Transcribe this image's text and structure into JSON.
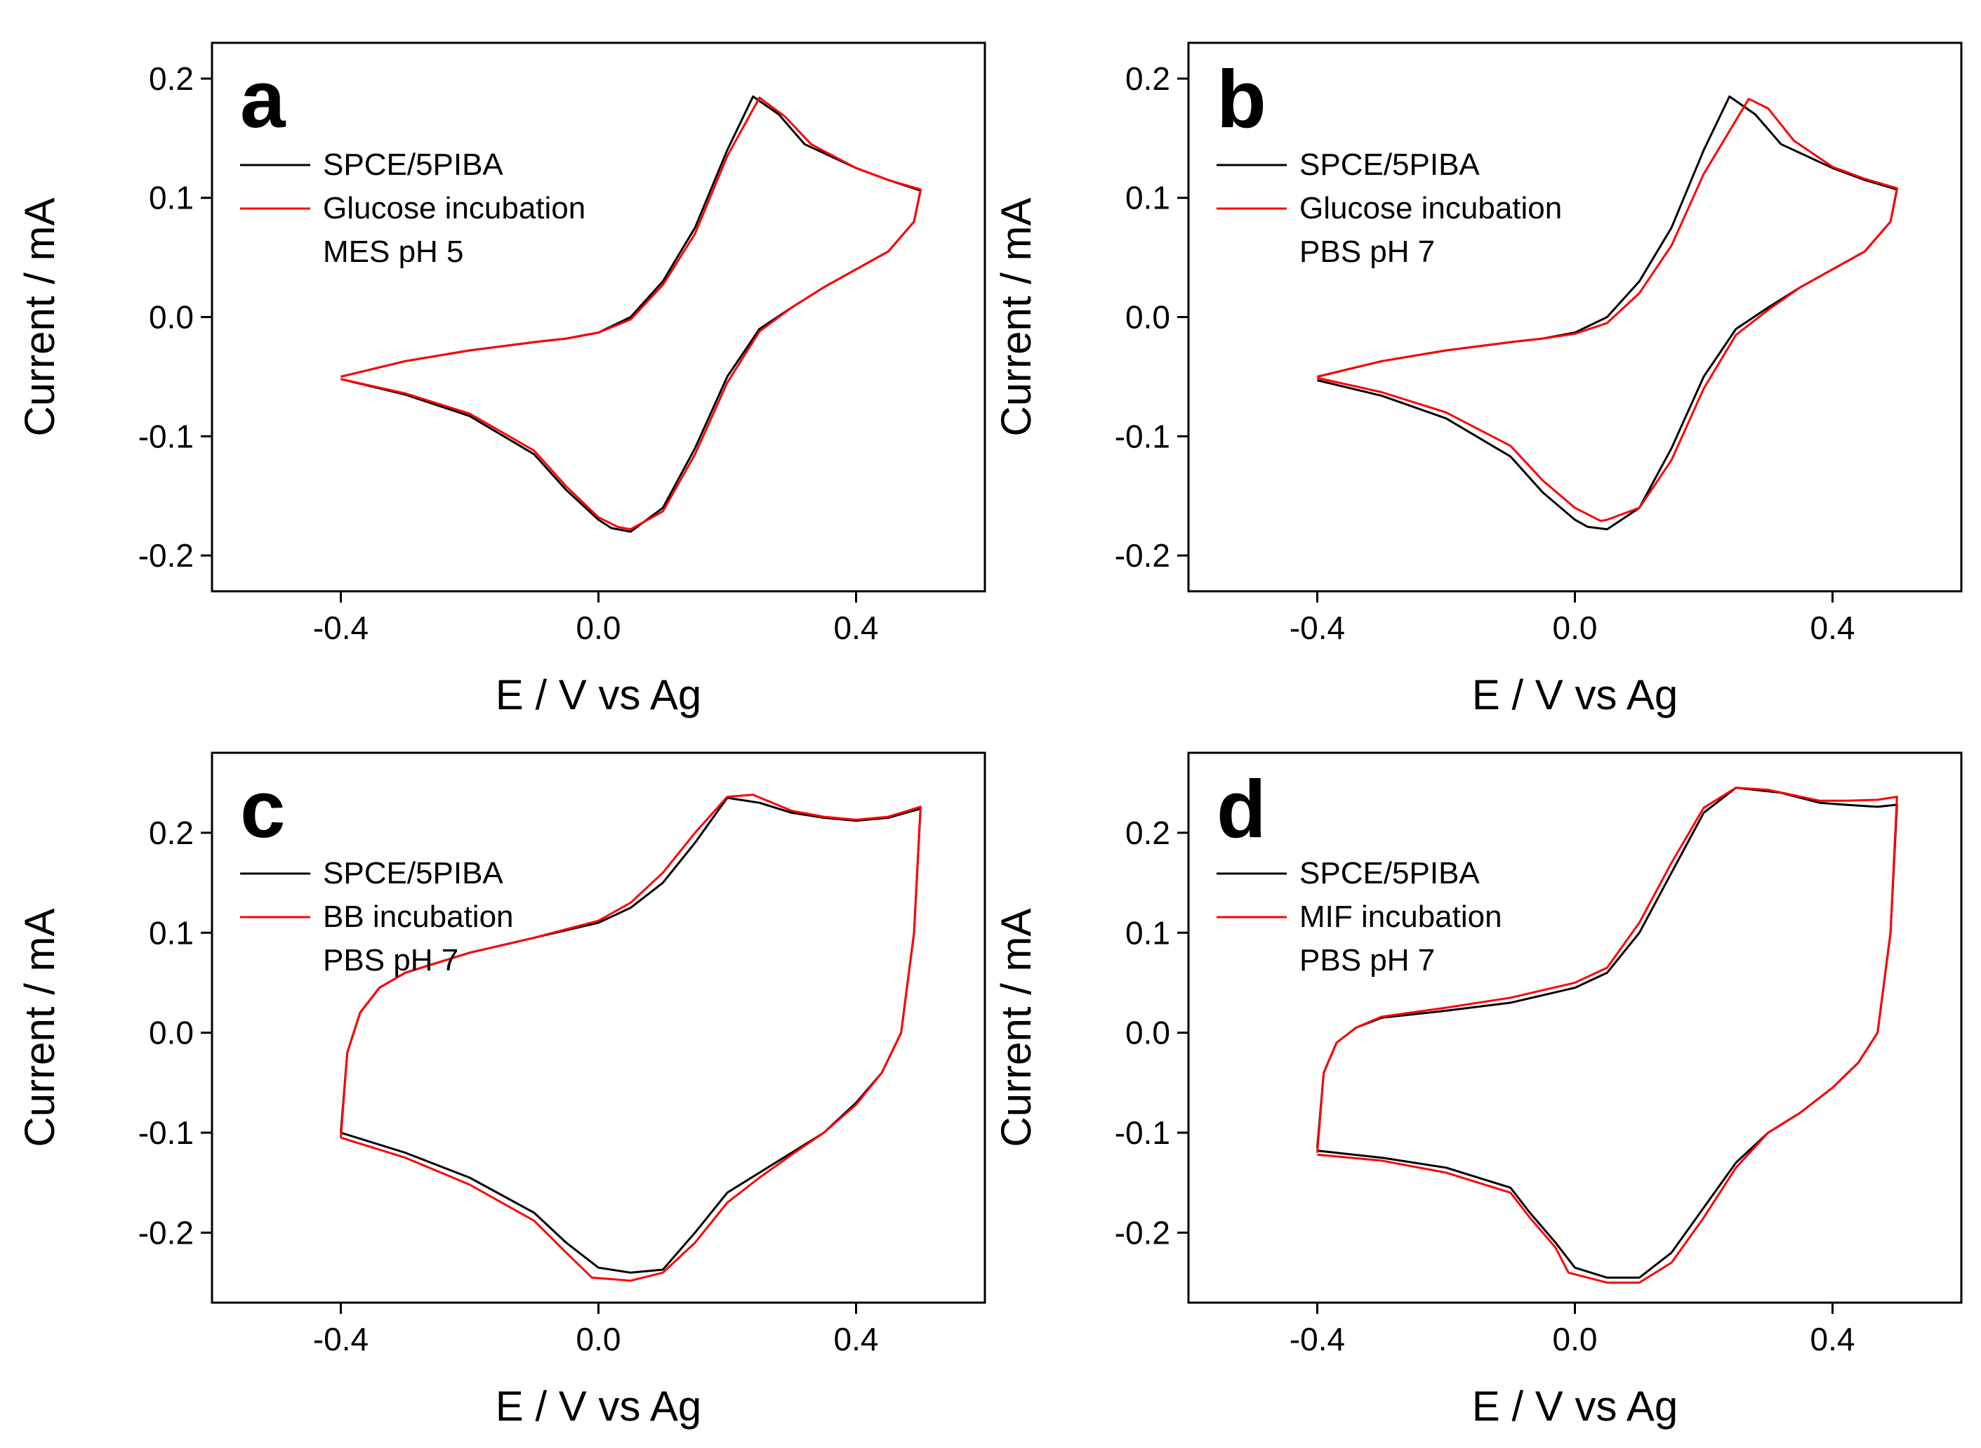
{
  "figure": {
    "description_panels": [
      "a",
      "b",
      "c",
      "d"
    ]
  },
  "chart_data": [
    {
      "panel": "a",
      "type": "line",
      "xlabel": "E / V vs Ag",
      "ylabel": "Current / mA",
      "xlim": [
        -0.6,
        0.6
      ],
      "ylim": [
        -0.23,
        0.23
      ],
      "xticks": [
        -0.4,
        0.0,
        0.4
      ],
      "xtick_labels": [
        "-0.4",
        "0.0",
        "0.4"
      ],
      "yticks": [
        -0.2,
        -0.1,
        0.0,
        0.1,
        0.2
      ],
      "ytick_labels": [
        "-0.2",
        "-0.1",
        "0.0",
        "0.1",
        "0.2"
      ],
      "legend": {
        "position": "upper-left",
        "note": "MES pH 5"
      },
      "series": [
        {
          "name": "SPCE/5PIBA",
          "color": "#000000",
          "x": [
            -0.4,
            -0.3,
            -0.2,
            -0.1,
            -0.05,
            0.0,
            0.05,
            0.1,
            0.15,
            0.2,
            0.24,
            0.28,
            0.32,
            0.4,
            0.45,
            0.5,
            0.49,
            0.45,
            0.4,
            0.35,
            0.3,
            0.25,
            0.2,
            0.15,
            0.1,
            0.05,
            0.02,
            0.0,
            -0.05,
            -0.1,
            -0.2,
            -0.3,
            -0.4
          ],
          "y": [
            -0.05,
            -0.037,
            -0.028,
            -0.021,
            -0.018,
            -0.013,
            0.0,
            0.03,
            0.075,
            0.14,
            0.185,
            0.17,
            0.145,
            0.125,
            0.115,
            0.106,
            0.08,
            0.055,
            0.04,
            0.025,
            0.008,
            -0.01,
            -0.05,
            -0.11,
            -0.16,
            -0.18,
            -0.177,
            -0.17,
            -0.145,
            -0.115,
            -0.083,
            -0.065,
            -0.052
          ]
        },
        {
          "name": "Glucose incubation",
          "color": "#ff0000",
          "x": [
            -0.4,
            -0.3,
            -0.2,
            -0.1,
            -0.05,
            0.0,
            0.05,
            0.1,
            0.15,
            0.2,
            0.25,
            0.29,
            0.33,
            0.4,
            0.45,
            0.5,
            0.49,
            0.45,
            0.4,
            0.35,
            0.3,
            0.25,
            0.2,
            0.15,
            0.1,
            0.05,
            0.03,
            0.0,
            -0.05,
            -0.1,
            -0.2,
            -0.3,
            -0.4
          ],
          "y": [
            -0.05,
            -0.037,
            -0.028,
            -0.021,
            -0.018,
            -0.013,
            -0.002,
            0.027,
            0.07,
            0.135,
            0.184,
            0.168,
            0.145,
            0.125,
            0.115,
            0.107,
            0.08,
            0.055,
            0.04,
            0.025,
            0.008,
            -0.012,
            -0.055,
            -0.115,
            -0.163,
            -0.178,
            -0.176,
            -0.168,
            -0.142,
            -0.112,
            -0.081,
            -0.064,
            -0.052
          ]
        }
      ]
    },
    {
      "panel": "b",
      "type": "line",
      "xlabel": "E / V vs Ag",
      "ylabel": "Current / mA",
      "xlim": [
        -0.6,
        0.6
      ],
      "ylim": [
        -0.23,
        0.23
      ],
      "xticks": [
        -0.4,
        0.0,
        0.4
      ],
      "xtick_labels": [
        "-0.4",
        "0.0",
        "0.4"
      ],
      "yticks": [
        -0.2,
        -0.1,
        0.0,
        0.1,
        0.2
      ],
      "ytick_labels": [
        "-0.2",
        "-0.1",
        "0.0",
        "0.1",
        "0.2"
      ],
      "legend": {
        "position": "upper-left",
        "note": "PBS pH 7"
      },
      "series": [
        {
          "name": "SPCE/5PIBA",
          "color": "#000000",
          "x": [
            -0.4,
            -0.3,
            -0.2,
            -0.1,
            -0.05,
            0.0,
            0.05,
            0.1,
            0.15,
            0.2,
            0.24,
            0.28,
            0.32,
            0.4,
            0.45,
            0.5,
            0.49,
            0.45,
            0.4,
            0.35,
            0.3,
            0.25,
            0.2,
            0.15,
            0.1,
            0.05,
            0.02,
            0.0,
            -0.05,
            -0.1,
            -0.2,
            -0.3,
            -0.4
          ],
          "y": [
            -0.05,
            -0.037,
            -0.028,
            -0.021,
            -0.018,
            -0.013,
            0.0,
            0.03,
            0.075,
            0.14,
            0.185,
            0.17,
            0.145,
            0.125,
            0.115,
            0.107,
            0.08,
            0.055,
            0.04,
            0.025,
            0.008,
            -0.01,
            -0.05,
            -0.11,
            -0.16,
            -0.178,
            -0.176,
            -0.17,
            -0.147,
            -0.117,
            -0.085,
            -0.066,
            -0.053
          ]
        },
        {
          "name": "Glucose incubation",
          "color": "#ff0000",
          "x": [
            -0.4,
            -0.3,
            -0.2,
            -0.1,
            -0.05,
            0.0,
            0.05,
            0.1,
            0.15,
            0.2,
            0.27,
            0.3,
            0.34,
            0.4,
            0.45,
            0.5,
            0.49,
            0.45,
            0.4,
            0.35,
            0.3,
            0.25,
            0.2,
            0.15,
            0.1,
            0.05,
            0.04,
            0.0,
            -0.05,
            -0.1,
            -0.2,
            -0.3,
            -0.4
          ],
          "y": [
            -0.05,
            -0.037,
            -0.028,
            -0.021,
            -0.018,
            -0.014,
            -0.005,
            0.02,
            0.06,
            0.12,
            0.183,
            0.175,
            0.148,
            0.126,
            0.116,
            0.108,
            0.08,
            0.055,
            0.04,
            0.025,
            0.006,
            -0.015,
            -0.06,
            -0.12,
            -0.16,
            -0.17,
            -0.171,
            -0.16,
            -0.137,
            -0.108,
            -0.08,
            -0.063,
            -0.051
          ]
        }
      ]
    },
    {
      "panel": "c",
      "type": "line",
      "xlabel": "E / V vs Ag",
      "ylabel": "Current / mA",
      "xlim": [
        -0.6,
        0.6
      ],
      "ylim": [
        -0.27,
        0.28
      ],
      "xticks": [
        -0.4,
        0.0,
        0.4
      ],
      "xtick_labels": [
        "-0.4",
        "0.0",
        "0.4"
      ],
      "yticks": [
        -0.2,
        -0.1,
        0.0,
        0.1,
        0.2
      ],
      "ytick_labels": [
        "-0.2",
        "-0.1",
        "0.0",
        "0.1",
        "0.2"
      ],
      "legend": {
        "position": "upper-left",
        "note": "PBS pH 7"
      },
      "series": [
        {
          "name": "SPCE/5PIBA",
          "color": "#000000",
          "x": [
            -0.4,
            -0.39,
            -0.37,
            -0.34,
            -0.3,
            -0.2,
            -0.1,
            0.0,
            0.05,
            0.1,
            0.15,
            0.2,
            0.25,
            0.3,
            0.35,
            0.4,
            0.45,
            0.5,
            0.49,
            0.47,
            0.44,
            0.4,
            0.35,
            0.3,
            0.25,
            0.2,
            0.15,
            0.1,
            0.05,
            0.0,
            -0.05,
            -0.1,
            -0.2,
            -0.3,
            -0.4
          ],
          "y": [
            -0.1,
            -0.02,
            0.02,
            0.045,
            0.06,
            0.08,
            0.095,
            0.11,
            0.125,
            0.15,
            0.19,
            0.235,
            0.23,
            0.22,
            0.215,
            0.212,
            0.215,
            0.224,
            0.1,
            0.0,
            -0.04,
            -0.07,
            -0.1,
            -0.12,
            -0.14,
            -0.16,
            -0.2,
            -0.237,
            -0.24,
            -0.235,
            -0.21,
            -0.18,
            -0.145,
            -0.12,
            -0.1
          ]
        },
        {
          "name": "BB incubation",
          "color": "#ff0000",
          "x": [
            -0.4,
            -0.39,
            -0.37,
            -0.34,
            -0.3,
            -0.2,
            -0.1,
            0.0,
            0.05,
            0.1,
            0.15,
            0.2,
            0.24,
            0.3,
            0.35,
            0.4,
            0.45,
            0.5,
            0.49,
            0.47,
            0.44,
            0.4,
            0.35,
            0.3,
            0.25,
            0.2,
            0.15,
            0.1,
            0.05,
            -0.01,
            -0.05,
            -0.1,
            -0.2,
            -0.3,
            -0.4
          ],
          "y": [
            -0.105,
            -0.02,
            0.02,
            0.045,
            0.06,
            0.08,
            0.095,
            0.112,
            0.13,
            0.16,
            0.2,
            0.236,
            0.238,
            0.222,
            0.216,
            0.213,
            0.216,
            0.226,
            0.1,
            0.0,
            -0.04,
            -0.072,
            -0.1,
            -0.122,
            -0.145,
            -0.17,
            -0.21,
            -0.24,
            -0.248,
            -0.245,
            -0.22,
            -0.188,
            -0.152,
            -0.125,
            -0.105
          ]
        }
      ]
    },
    {
      "panel": "d",
      "type": "line",
      "xlabel": "E / V vs Ag",
      "ylabel": "Current / mA",
      "xlim": [
        -0.6,
        0.6
      ],
      "ylim": [
        -0.27,
        0.28
      ],
      "xticks": [
        -0.4,
        0.0,
        0.4
      ],
      "xtick_labels": [
        "-0.4",
        "0.0",
        "0.4"
      ],
      "yticks": [
        -0.2,
        -0.1,
        0.0,
        0.1,
        0.2
      ],
      "ytick_labels": [
        "-0.2",
        "-0.1",
        "0.0",
        "0.1",
        "0.2"
      ],
      "legend": {
        "position": "upper-left",
        "note": "PBS pH 7"
      },
      "series": [
        {
          "name": "SPCE/5PIBA",
          "color": "#000000",
          "x": [
            -0.4,
            -0.39,
            -0.37,
            -0.34,
            -0.3,
            -0.2,
            -0.1,
            0.0,
            0.05,
            0.1,
            0.15,
            0.2,
            0.25,
            0.32,
            0.38,
            0.42,
            0.47,
            0.5,
            0.49,
            0.47,
            0.44,
            0.4,
            0.35,
            0.3,
            0.25,
            0.2,
            0.15,
            0.1,
            0.05,
            0.0,
            -0.03,
            -0.07,
            -0.1,
            -0.2,
            -0.3,
            -0.4
          ],
          "y": [
            -0.115,
            -0.04,
            -0.01,
            0.005,
            0.015,
            0.022,
            0.03,
            0.045,
            0.06,
            0.1,
            0.16,
            0.22,
            0.245,
            0.24,
            0.23,
            0.228,
            0.226,
            0.228,
            0.1,
            0.0,
            -0.03,
            -0.055,
            -0.08,
            -0.1,
            -0.13,
            -0.175,
            -0.22,
            -0.245,
            -0.245,
            -0.235,
            -0.21,
            -0.18,
            -0.155,
            -0.135,
            -0.125,
            -0.118
          ]
        },
        {
          "name": "MIF incubation",
          "color": "#ff0000",
          "x": [
            -0.4,
            -0.39,
            -0.37,
            -0.34,
            -0.3,
            -0.2,
            -0.1,
            0.0,
            0.05,
            0.1,
            0.15,
            0.2,
            0.25,
            0.3,
            0.38,
            0.42,
            0.47,
            0.5,
            0.49,
            0.47,
            0.44,
            0.4,
            0.35,
            0.3,
            0.25,
            0.2,
            0.15,
            0.1,
            0.05,
            -0.01,
            -0.03,
            -0.07,
            -0.1,
            -0.2,
            -0.3,
            -0.4
          ],
          "y": [
            -0.12,
            -0.04,
            -0.01,
            0.005,
            0.016,
            0.025,
            0.035,
            0.05,
            0.065,
            0.11,
            0.17,
            0.225,
            0.245,
            0.243,
            0.232,
            0.232,
            0.233,
            0.236,
            0.1,
            0.0,
            -0.03,
            -0.055,
            -0.08,
            -0.1,
            -0.135,
            -0.185,
            -0.23,
            -0.25,
            -0.25,
            -0.24,
            -0.215,
            -0.185,
            -0.16,
            -0.14,
            -0.128,
            -0.122
          ]
        }
      ]
    }
  ]
}
